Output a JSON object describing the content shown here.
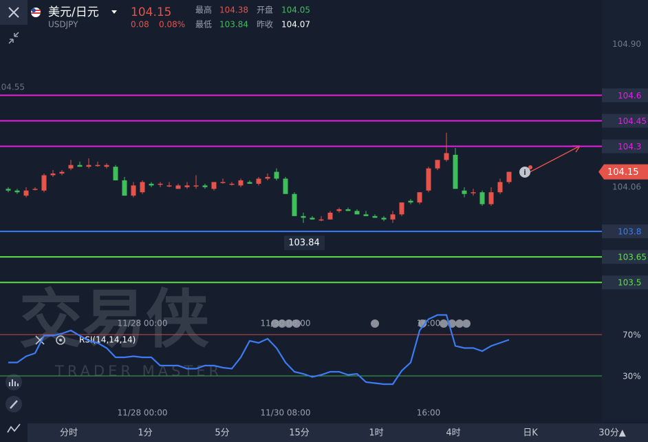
{
  "header": {
    "symbol": "美元/日元",
    "code": "USDJPY",
    "price": 104.15,
    "change": 0.08,
    "change_pct": "0.08%",
    "high_label": "最高",
    "high": 104.38,
    "open_label": "开盘",
    "open": 104.05,
    "low_label": "最低",
    "low": 103.84,
    "prev_label": "昨收",
    "prev": 104.07
  },
  "left_axis_label": "104.55",
  "watermark": {
    "cn": "交易侠",
    "en": "TRADER MASTER"
  },
  "chart_data": {
    "type": "candlestick",
    "up_color": "#e5534b",
    "down_color": "#3fbf5a",
    "ylim": [
      103.42,
      105.16
    ],
    "yticks": [
      {
        "value": 104.9,
        "label": "104.90"
      },
      104.06
    ],
    "categories": [
      null,
      null,
      null,
      null,
      null,
      null,
      null,
      null,
      null,
      null,
      null,
      null,
      null,
      null,
      null,
      "11/28 00:00",
      null,
      null,
      null,
      null,
      null,
      null,
      null,
      null,
      null,
      null,
      null,
      null,
      null,
      null,
      null,
      "11/30 08:00",
      null,
      null,
      null,
      null,
      null,
      null,
      null,
      null,
      null,
      null,
      null,
      null,
      null,
      null,
      null,
      "16:00",
      null,
      null,
      null,
      null,
      null,
      null,
      null,
      null,
      null
    ],
    "open": [
      104.05,
      104.04,
      104.01,
      104.05,
      104.04,
      104.13,
      104.14,
      104.17,
      104.19,
      104.18,
      104.19,
      104.18,
      104.18,
      104.1,
      104.01,
      104.03,
      104.08,
      104.08,
      104.07,
      104.05,
      104.06,
      104.07,
      104.07,
      104.05,
      104.09,
      104.08,
      104.07,
      104.09,
      104.08,
      104.11,
      104.15,
      104.11,
      104.02,
      103.89,
      103.88,
      103.87,
      103.87,
      103.92,
      103.93,
      103.92,
      103.9,
      103.89,
      103.88,
      103.87,
      103.9,
      103.98,
      103.97,
      104.04,
      104.17,
      104.22,
      104.25,
      104.04,
      104.03,
      104.03,
      103.96,
      104.03,
      104.09
    ],
    "high": [
      104.06,
      104.05,
      104.06,
      104.06,
      104.14,
      104.16,
      104.16,
      104.22,
      104.21,
      104.23,
      104.21,
      104.2,
      104.19,
      104.12,
      104.09,
      104.1,
      104.09,
      104.09,
      104.09,
      104.08,
      104.09,
      104.13,
      104.08,
      104.09,
      104.11,
      104.09,
      104.11,
      104.1,
      104.12,
      104.14,
      104.17,
      104.12,
      104.03,
      103.91,
      103.89,
      103.89,
      103.92,
      103.94,
      103.94,
      103.93,
      103.92,
      103.9,
      103.89,
      103.92,
      103.97,
      103.99,
      104.03,
      104.18,
      104.22,
      104.38,
      104.29,
      104.06,
      104.05,
      104.04,
      104.06,
      104.11,
      104.15
    ],
    "low": [
      104.03,
      104.02,
      104.0,
      104.04,
      104.03,
      104.12,
      104.13,
      104.16,
      104.18,
      104.17,
      104.18,
      104.17,
      104.1,
      104.01,
      104.0,
      104.02,
      104.06,
      104.06,
      104.06,
      104.05,
      104.05,
      104.05,
      104.05,
      104.04,
      104.08,
      104.07,
      104.06,
      104.08,
      104.07,
      104.1,
      104.1,
      104.02,
      103.89,
      103.85,
      103.87,
      103.86,
      103.87,
      103.91,
      103.92,
      103.9,
      103.89,
      103.88,
      103.86,
      103.85,
      103.89,
      103.96,
      103.96,
      104.03,
      104.16,
      104.21,
      104.05,
      104.0,
      104.01,
      103.95,
      103.95,
      104.02,
      104.08
    ],
    "close": [
      104.04,
      104.03,
      104.04,
      104.05,
      104.13,
      104.14,
      104.15,
      104.19,
      104.18,
      104.19,
      104.19,
      104.19,
      104.1,
      104.01,
      104.07,
      104.09,
      104.07,
      104.08,
      104.07,
      104.07,
      104.07,
      104.07,
      104.06,
      104.09,
      104.09,
      104.08,
      104.1,
      104.08,
      104.11,
      104.12,
      104.11,
      104.02,
      103.89,
      103.88,
      103.87,
      103.87,
      103.91,
      103.93,
      103.92,
      103.9,
      103.89,
      103.88,
      103.87,
      103.9,
      103.97,
      103.97,
      104.03,
      104.17,
      104.22,
      104.26,
      104.05,
      104.02,
      104.03,
      103.96,
      104.03,
      104.09,
      104.15
    ],
    "levels": [
      {
        "value": 104.6,
        "color": "#e61ee6"
      },
      {
        "value": 104.45,
        "color": "#e61ee6"
      },
      {
        "value": 104.3,
        "color": "#e61ee6"
      },
      {
        "value": 103.8,
        "color": "#3d7bf5"
      },
      {
        "value": 103.65,
        "color": "#5ee04a"
      },
      {
        "value": 103.5,
        "color": "#5ee04a"
      }
    ],
    "current": 104.15,
    "low_marker": 103.84,
    "rsi": {
      "title": "RSI(14,14,14)",
      "color": "#3d7bf5",
      "ylim": [
        0,
        100
      ],
      "yticks": [
        {
          "value": 70,
          "label": "70%",
          "color": "#c84a4a"
        },
        {
          "value": 30,
          "label": "30%",
          "color": "#3fae4a"
        }
      ],
      "values": [
        43,
        43,
        49,
        52,
        69,
        69,
        71,
        74,
        69,
        64,
        62,
        57,
        48,
        48,
        49,
        48,
        48,
        40,
        40,
        40,
        37,
        37,
        40,
        40,
        38,
        37,
        48,
        64,
        62,
        66,
        57,
        43,
        34,
        32,
        29,
        31,
        34,
        34,
        31,
        32,
        24,
        23,
        22,
        22,
        35,
        43,
        74,
        85,
        89,
        89,
        59,
        57,
        57,
        54,
        59,
        62,
        65
      ]
    }
  },
  "tabs": [
    "分时",
    "1分",
    "5分",
    "15分",
    "1时",
    "4时",
    "日K",
    "30分▲"
  ]
}
